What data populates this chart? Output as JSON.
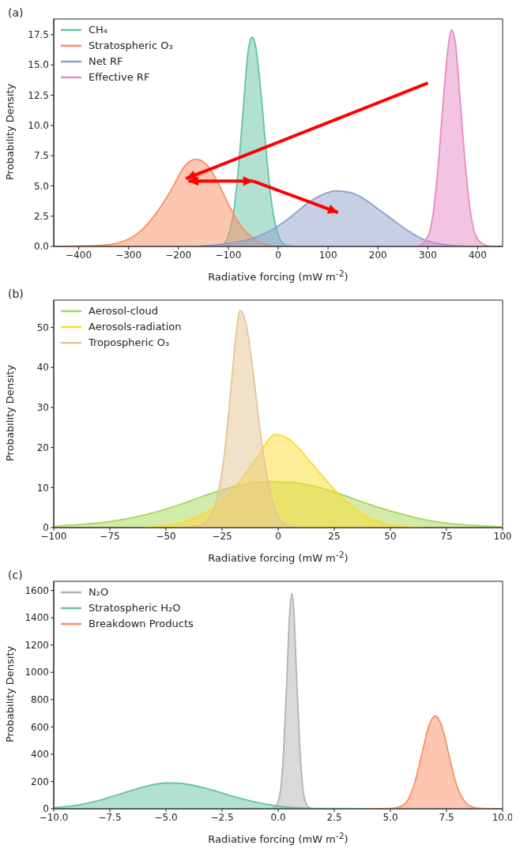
{
  "chart_data": [
    {
      "type": "area",
      "title": "(a)",
      "xlabel": "Radiative forcing (mW m$^{-2}$)",
      "ylabel": "Probability Density",
      "legend": "top left",
      "xlim": [
        -450,
        450
      ],
      "ylim": [
        0,
        18.8
      ],
      "xticks": [
        {
          "value": -400,
          "label": "−400"
        },
        {
          "value": -300,
          "label": "−300"
        },
        {
          "value": -200,
          "label": "−200"
        },
        {
          "value": -100,
          "label": "−100"
        },
        0,
        100,
        200,
        300,
        400
      ],
      "yticks": [
        {
          "value": 0,
          "label": "0.0"
        },
        2.5,
        {
          "value": 5,
          "label": "5.0"
        },
        7.5,
        {
          "value": 10,
          "label": "10.0"
        },
        12.5,
        {
          "value": 15,
          "label": "15.0"
        },
        17.5
      ],
      "series": [
        {
          "name": "CH₄",
          "color": "#66c2a5",
          "x": [
            -130,
            -110,
            -100,
            -90,
            -80,
            -70,
            -60,
            -52,
            -45,
            -35,
            -25,
            -15,
            -5,
            5,
            15,
            30
          ],
          "values": [
            0,
            0.2,
            0.9,
            2.7,
            6.3,
            11.4,
            16.2,
            17.3,
            16.5,
            12.9,
            8.3,
            4.2,
            1.7,
            0.5,
            0.1,
            0
          ]
        },
        {
          "name": "Stratospheric O₃",
          "color": "#fc8d62",
          "x": [
            -450,
            -350,
            -300,
            -270,
            -240,
            -210,
            -190,
            -165,
            -140,
            -120,
            -100,
            -80,
            -60,
            -40,
            -20,
            0
          ],
          "values": [
            0,
            0.1,
            0.6,
            1.5,
            3,
            5,
            6.5,
            7.2,
            6.6,
            5.2,
            3.5,
            2,
            1,
            0.4,
            0.1,
            0
          ]
        },
        {
          "name": "Net RF",
          "color": "#8da0cb",
          "x": [
            -200,
            -150,
            -100,
            -50,
            -20,
            0,
            30,
            60,
            90,
            115,
            140,
            170,
            200,
            230,
            260,
            290,
            320,
            360,
            400
          ],
          "values": [
            0,
            0.05,
            0.25,
            0.7,
            1.2,
            1.7,
            2.6,
            3.6,
            4.3,
            4.6,
            4.5,
            4,
            3.1,
            2.2,
            1.3,
            0.6,
            0.25,
            0.05,
            0
          ]
        },
        {
          "name": "Effective RF",
          "color": "#e78ac3",
          "x": [
            280,
            300,
            310,
            320,
            330,
            340,
            347,
            355,
            365,
            375,
            385,
            395,
            410,
            430
          ],
          "values": [
            0,
            0.8,
            2.5,
            6.3,
            11.5,
            16.2,
            17.9,
            16.9,
            12,
            6.8,
            3,
            1,
            0.2,
            0
          ]
        }
      ]
    },
    {
      "type": "area",
      "title": "(b)",
      "xlabel": "Radiative forcing (mW m$^{-2}$)",
      "ylabel": "Probability Density",
      "legend": "top left",
      "xlim": [
        -100,
        100
      ],
      "ylim": [
        0,
        56.8
      ],
      "xticks": [
        {
          "value": -100,
          "label": "−100"
        },
        {
          "value": -75,
          "label": "−75"
        },
        {
          "value": -50,
          "label": "−50"
        },
        {
          "value": -25,
          "label": "−25"
        },
        0,
        25,
        50,
        75,
        100
      ],
      "yticks": [
        0,
        10,
        20,
        30,
        40,
        50
      ],
      "series": [
        {
          "name": "Aerosol-cloud",
          "color": "#a6d854",
          "x": [
            -100,
            -90,
            -75,
            -60,
            -50,
            -40,
            -30,
            -20,
            -10,
            -3,
            5,
            15,
            25,
            35,
            45,
            55,
            65,
            75,
            85,
            100
          ],
          "values": [
            0.3,
            0.7,
            1.5,
            3.1,
            4.6,
            6.5,
            8.5,
            10.2,
            11.2,
            11.4,
            11.3,
            10.5,
            8.9,
            6.9,
            5,
            3.4,
            2,
            1.1,
            0.6,
            0.2
          ]
        },
        {
          "name": "Aerosols-radiation",
          "color": "#ffd92f",
          "x": [
            -60,
            -50,
            -40,
            -30,
            -20,
            -10,
            -1,
            5,
            15,
            25,
            35,
            45,
            55,
            65
          ],
          "values": [
            0,
            0.5,
            1.8,
            4.5,
            9.5,
            17,
            23.3,
            22,
            16,
            9.5,
            4.3,
            1.4,
            0.3,
            0
          ]
        },
        {
          "name": "Tropospheric O₃",
          "color": "#e5c494",
          "x": [
            -45,
            -35,
            -30,
            -27,
            -24,
            -21,
            -19,
            -17,
            -14,
            -11,
            -8,
            -5,
            -2,
            1,
            5,
            10
          ],
          "values": [
            0,
            0.5,
            3,
            8,
            18,
            35,
            47,
            54.2,
            50,
            38,
            24,
            13,
            5.5,
            1.8,
            0.3,
            0
          ]
        }
      ]
    },
    {
      "type": "area",
      "title": "(c)",
      "xlabel": "Radiative forcing (mW m$^{-2}$)",
      "ylabel": "Probability Density",
      "legend": "top left",
      "xlim": [
        -10,
        10
      ],
      "ylim": [
        0,
        1667
      ],
      "xticks": [
        {
          "value": -10,
          "label": "−10.0"
        },
        {
          "value": -7.5,
          "label": "−7.5"
        },
        {
          "value": -5,
          "label": "−5.0"
        },
        {
          "value": -2.5,
          "label": "−2.5"
        },
        {
          "value": 0,
          "label": "0.0"
        },
        2.5,
        {
          "value": 5,
          "label": "5.0"
        },
        7.5,
        {
          "value": 10,
          "label": "10.0"
        }
      ],
      "yticks": [
        0,
        200,
        400,
        600,
        800,
        1000,
        1200,
        1400,
        1600
      ],
      "series": [
        {
          "name": "N₂O",
          "color": "#b3b3b3",
          "x": [
            -0.3,
            -0.1,
            0.1,
            0.25,
            0.4,
            0.5,
            0.6,
            0.7,
            0.8,
            0.95,
            1.1,
            1.3,
            1.5
          ],
          "values": [
            0,
            20,
            130,
            450,
            1000,
            1400,
            1580,
            1450,
            1050,
            500,
            150,
            20,
            0
          ]
        },
        {
          "name": "Stratospheric H₂O",
          "color": "#66c2a5",
          "x": [
            -10,
            -9,
            -8,
            -7,
            -6,
            -5,
            -4.5,
            -4,
            -3,
            -2,
            -1,
            0,
            1,
            2,
            4,
            7
          ],
          "values": [
            8,
            25,
            60,
            110,
            160,
            188,
            188,
            178,
            140,
            90,
            48,
            20,
            7,
            2,
            0,
            0
          ]
        },
        {
          "name": "Breakdown Products",
          "color": "#fc8d62",
          "x": [
            4,
            5,
            5.5,
            5.8,
            6.1,
            6.4,
            6.7,
            7,
            7.3,
            7.6,
            7.9,
            8.2,
            8.5,
            9,
            10
          ],
          "values": [
            0,
            2,
            20,
            70,
            200,
            400,
            600,
            680,
            600,
            400,
            200,
            80,
            25,
            3,
            0
          ]
        }
      ]
    }
  ]
}
